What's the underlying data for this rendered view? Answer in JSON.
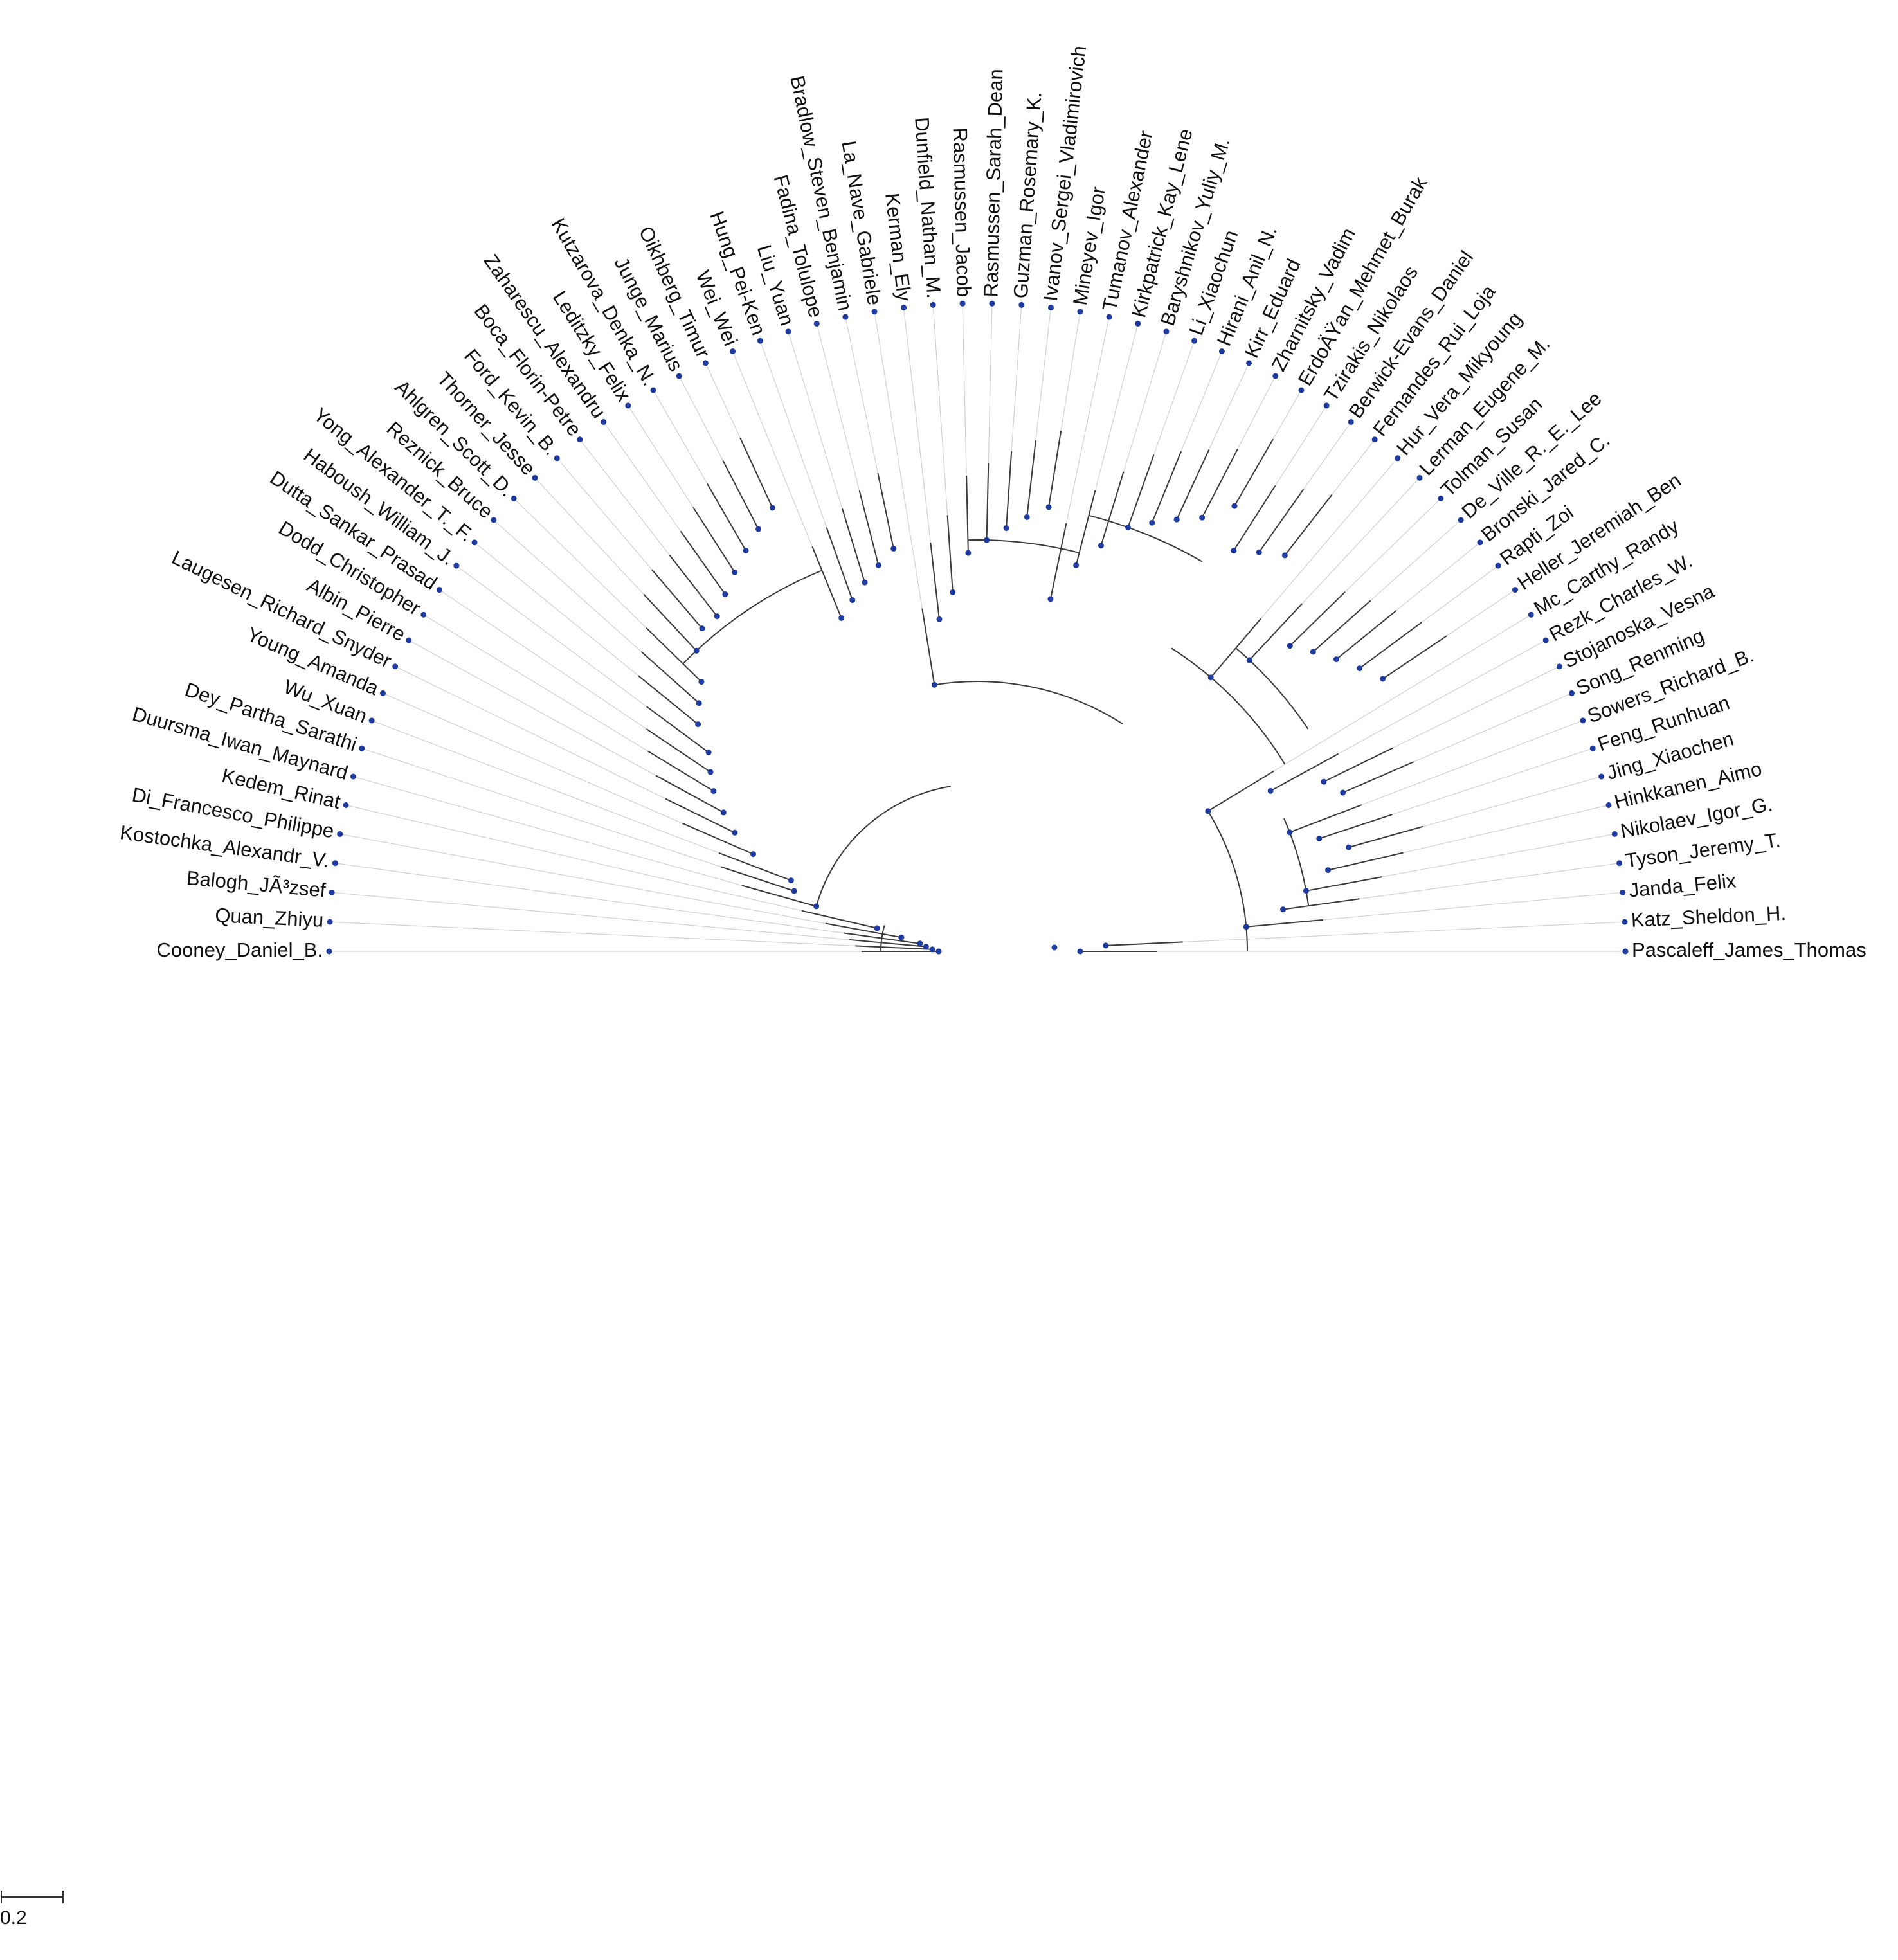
{
  "tree": {
    "leaves": [
      "Cooney_Daniel_B.",
      "Quan_Zhiyu",
      "Balogh_JÃ³zsef",
      "Kostochka_Alexandr_V.",
      "Di_Francesco_Philippe",
      "Kedem_Rinat",
      "Duursma_Iwan_Maynard",
      "Dey_Partha_Sarathi",
      "Wu_Xuan",
      "Young_Amanda",
      "Laugesen_Richard_Snyder",
      "Albin_Pierre",
      "Dodd_Christopher",
      "Dutta_Sankar_Prasad",
      "Haboush_William_J.",
      "Yong_Alexander_T._F.",
      "Reznick_Bruce",
      "Ahlgren_Scott_D.",
      "Thorner_Jesse",
      "Ford_Kevin_B.",
      "Boca_Florin-Petre",
      "Zaharescu_Alexandru",
      "Leditzky_Felix",
      "Kutzarova_Denka_N.",
      "Junge_Marius",
      "Oikhberg_Timur",
      "Wei_Wei",
      "Hung_Pei-Ken",
      "Liu_Yuan",
      "Fadina_Tolulope",
      "Bradlow_Steven_Benjamin",
      "La_Nave_Gabriele",
      "Kerman_Ely",
      "Dunfield_Nathan_M.",
      "Rasmussen_Jacob",
      "Rasmussen_Sarah_Dean",
      "Guzman_Rosemary_K.",
      "Ivanov_Sergei_Vladimirovich",
      "Mineyev_Igor",
      "Tumanov_Alexander",
      "Kirkpatrick_Kay_Lene",
      "Baryshnikov_Yuliy_M.",
      "Li_Xiaochun",
      "Hirani_Anil_N.",
      "Kirr_Eduard",
      "Zharnitsky_Vadim",
      "ErdoÄŸan_Mehmet_Burak",
      "Tzirakis_Nikolaos",
      "Berwick-Evans_Daniel",
      "Fernandes_Rui_Loja",
      "Hur_Vera_Mikyoung",
      "Lerman_Eugene_M.",
      "Tolman_Susan",
      "De_Ville_R._E._Lee",
      "Bronski_Jared_C.",
      "Rapti_Zoi",
      "Heller_Jeremiah_Ben",
      "Mc_Carthy_Randy",
      "Rezk_Charles_W.",
      "Stojanoska_Vesna",
      "Song_Renming",
      "Sowers_Richard_B.",
      "Feng_Runhuan",
      "Jing_Xiaochen",
      "Hinkkanen_Aimo",
      "Nikolaev_Igor_G.",
      "Tyson_Jeremy_T.",
      "Janda_Felix",
      "Katz_Sheldon_H.",
      "Pascaleff_James_Thomas"
    ]
  },
  "scale_bar": {
    "label": "0.2"
  },
  "colors": {
    "node": "#1f3a9e",
    "branch": "#3a3a3a",
    "guide": "#d0d0d0",
    "text": "#111111"
  }
}
